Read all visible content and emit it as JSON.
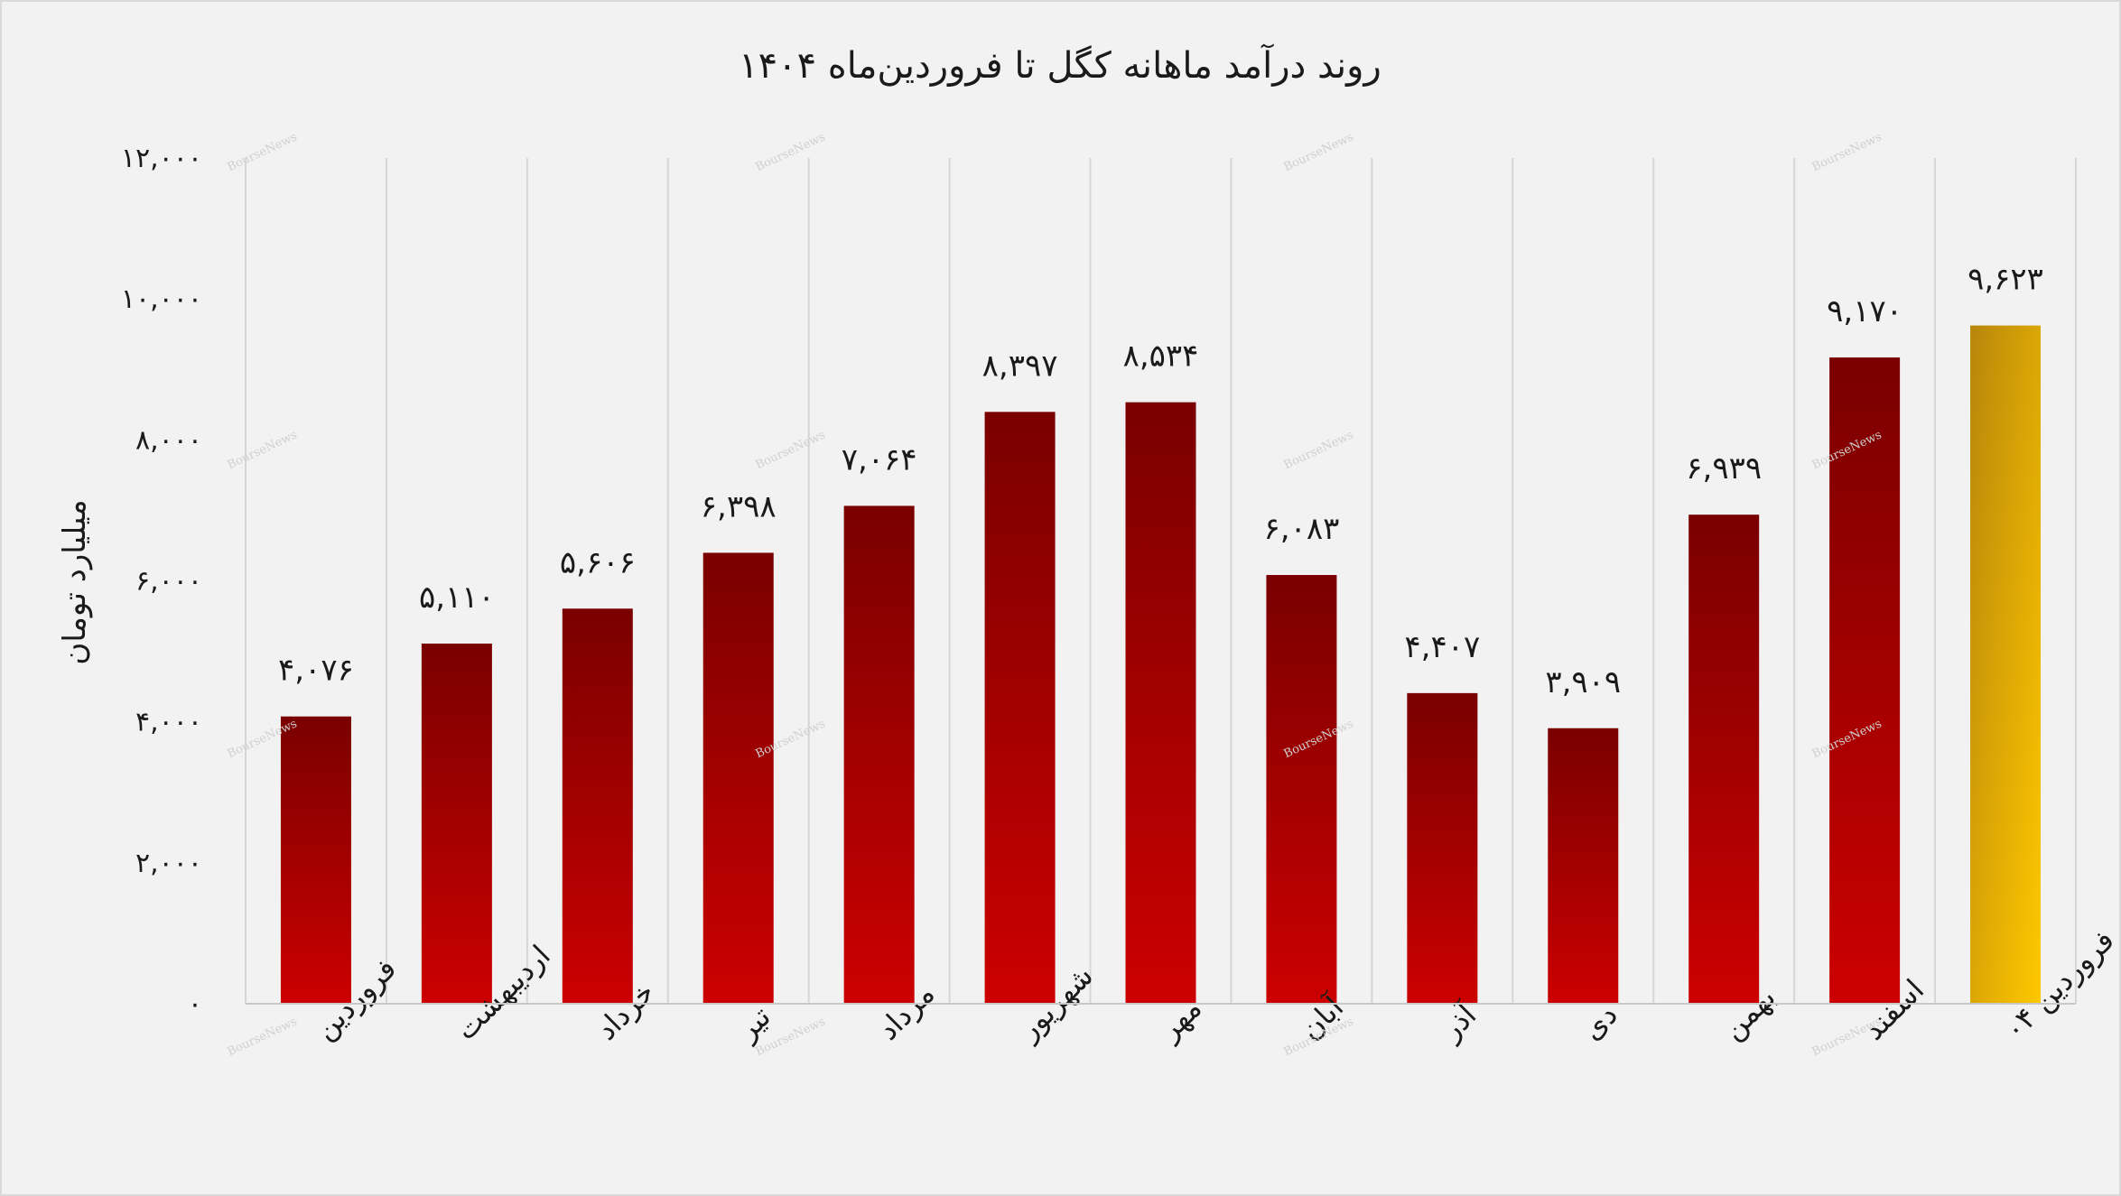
{
  "chart_data": {
    "type": "bar",
    "title": "روند درآمد ماهانه کگل تا فروردین‌ماه ۱۴۰۴",
    "ylabel": "میلیارد تومان",
    "xlabel": "",
    "ylim": [
      0,
      12000
    ],
    "yticks": [
      0,
      2000,
      4000,
      6000,
      8000,
      10000,
      12000
    ],
    "ytick_labels": [
      "۰",
      "۲,۰۰۰",
      "۴,۰۰۰",
      "۶,۰۰۰",
      "۸,۰۰۰",
      "۱۰,۰۰۰",
      "۱۲,۰۰۰"
    ],
    "categories": [
      "فروردین",
      "اردیبهشت",
      "خرداد",
      "تیر",
      "مرداد",
      "شهریور",
      "مهر",
      "آبان",
      "آذر",
      "دی",
      "بهمن",
      "اسفند",
      "فروردین ۰۴"
    ],
    "values": [
      4076,
      5110,
      5606,
      6398,
      7064,
      8397,
      8534,
      6083,
      4407,
      3909,
      6939,
      9170,
      9623
    ],
    "value_labels": [
      "۴,۰۷۶",
      "۵,۱۱۰",
      "۵,۶۰۶",
      "۶,۳۹۸",
      "۷,۰۶۴",
      "۸,۳۹۷",
      "۸,۵۳۴",
      "۶,۰۸۳",
      "۴,۴۰۷",
      "۳,۹۰۹",
      "۶,۹۳۹",
      "۹,۱۷۰",
      "۹,۶۲۳"
    ],
    "highlight_index": 12,
    "grid": true,
    "legend": "none",
    "colors": {
      "bar_top": "#7a0000",
      "bar_bottom": "#cc0000",
      "highlight_top": "#b8860b",
      "highlight_bottom": "#ffc800"
    },
    "watermark": "BourseNews"
  }
}
